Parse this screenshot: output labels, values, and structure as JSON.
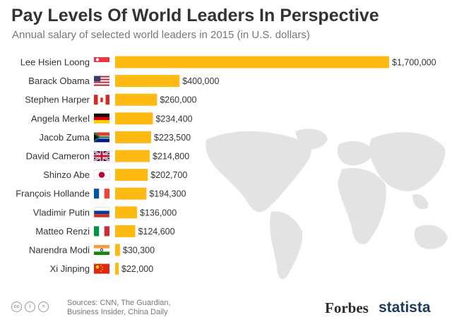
{
  "header": {
    "title": "Pay Levels Of World Leaders In Perspective",
    "subtitle": "Annual salary of selected world leaders in 2015 (in U.S. dollars)"
  },
  "footer": {
    "sources_line1": "Sources: CNN, The Guardian,",
    "sources_line2": "Business Insider, China Daily",
    "license_icons": [
      "cc",
      "i",
      "="
    ],
    "brand_forbes": "Forbes",
    "brand_statista": "statista"
  },
  "colors": {
    "bar": "#FDBA12",
    "map": "#E3E3E3",
    "title": "#333333"
  },
  "chart_data": {
    "type": "bar",
    "orientation": "horizontal",
    "title": "Pay Levels Of World Leaders In Perspective",
    "subtitle": "Annual salary of selected world leaders in 2015 (in U.S. dollars)",
    "categories": [
      "Lee Hsien Loong",
      "Barack Obama",
      "Stephen Harper",
      "Angela Merkel",
      "Jacob Zuma",
      "David Cameron",
      "Shinzo Abe",
      "François Hollande",
      "Vladimir Putin",
      "Matteo Renzi",
      "Narendra Modi",
      "Xi Jinping"
    ],
    "values": [
      1700000,
      400000,
      260000,
      234400,
      223500,
      214800,
      202700,
      194300,
      136000,
      124600,
      30300,
      22000
    ],
    "value_labels": [
      "$1,700,000",
      "$400,000",
      "$260,000",
      "$234,400",
      "$223,500",
      "$214,800",
      "$202,700",
      "$194,300",
      "$136,000",
      "$124,600",
      "$30,300",
      "$22,000"
    ],
    "flags": [
      "singapore",
      "usa",
      "canada",
      "germany",
      "south-africa",
      "uk",
      "japan",
      "france",
      "russia",
      "italy",
      "india",
      "china"
    ],
    "xlim": [
      0,
      1700000
    ],
    "grid": false,
    "legend": "none"
  }
}
